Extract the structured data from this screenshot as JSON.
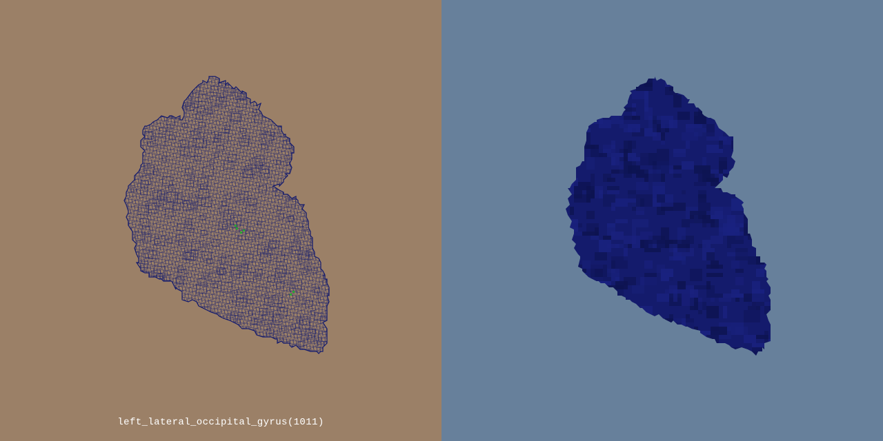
{
  "structure": {
    "label": "left_lateral_occipital_gyrus(1011)"
  },
  "views": [
    {
      "name": "wireframe",
      "background": "#9b8067",
      "mesh_color": "#121a6e",
      "highlight_color": "#2aa832"
    },
    {
      "name": "solid",
      "background": "#67809b",
      "mesh_color": "#141b6c",
      "shadow_color": "#0d1350"
    }
  ]
}
